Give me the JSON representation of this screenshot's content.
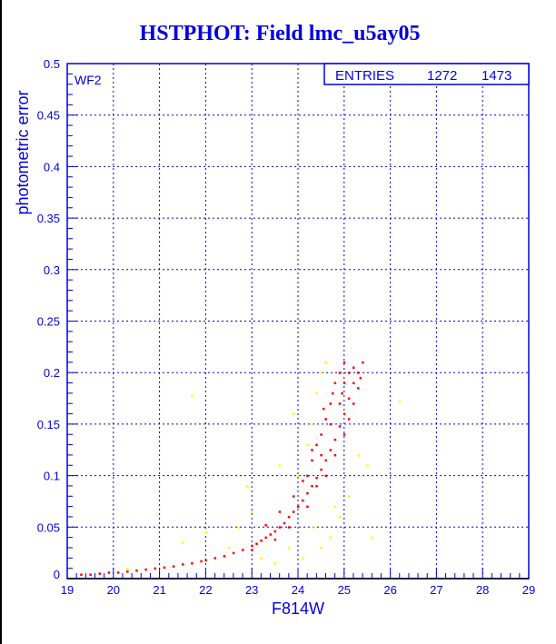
{
  "chart_data": {
    "type": "scatter",
    "title": "HSTPHOT: Field lmc_u5ay05",
    "xlabel": "F814W",
    "ylabel": "photometric error",
    "xlim": [
      19,
      29
    ],
    "ylim": [
      0,
      0.5
    ],
    "xticks": [
      "19",
      "20",
      "21",
      "22",
      "23",
      "24",
      "25",
      "26",
      "27",
      "28",
      "29"
    ],
    "yticks": [
      "0",
      "0.05",
      "0.1",
      "0.15",
      "0.2",
      "0.25",
      "0.3",
      "0.35",
      "0.4",
      "0.45",
      "0.5"
    ],
    "grid": true,
    "annotation": "WF2",
    "stats": {
      "label": "ENTRIES",
      "values": [
        "1272",
        "1473"
      ]
    },
    "colors": {
      "axis": "#0000e0",
      "series_red": "#ff0000",
      "series_yellow": "#ffff00"
    },
    "series": [
      {
        "color": "#ff0000",
        "points": [
          [
            19.3,
            0.004
          ],
          [
            19.5,
            0.004
          ],
          [
            19.7,
            0.005
          ],
          [
            19.9,
            0.006
          ],
          [
            20.1,
            0.006
          ],
          [
            20.3,
            0.007
          ],
          [
            20.5,
            0.008
          ],
          [
            20.7,
            0.009
          ],
          [
            20.9,
            0.01
          ],
          [
            21.1,
            0.011
          ],
          [
            21.3,
            0.012
          ],
          [
            21.5,
            0.014
          ],
          [
            21.7,
            0.015
          ],
          [
            21.9,
            0.017
          ],
          [
            22.0,
            0.018
          ],
          [
            22.2,
            0.02
          ],
          [
            22.4,
            0.022
          ],
          [
            22.6,
            0.025
          ],
          [
            22.8,
            0.028
          ],
          [
            23.0,
            0.032
          ],
          [
            23.1,
            0.034
          ],
          [
            23.2,
            0.037
          ],
          [
            23.3,
            0.04
          ],
          [
            23.4,
            0.043
          ],
          [
            23.5,
            0.046
          ],
          [
            23.6,
            0.05
          ],
          [
            23.7,
            0.054
          ],
          [
            23.8,
            0.06
          ],
          [
            23.9,
            0.065
          ],
          [
            24.0,
            0.07
          ],
          [
            24.1,
            0.076
          ],
          [
            24.2,
            0.083
          ],
          [
            24.3,
            0.09
          ],
          [
            24.4,
            0.098
          ],
          [
            24.5,
            0.106
          ],
          [
            24.6,
            0.115
          ],
          [
            24.7,
            0.125
          ],
          [
            24.8,
            0.135
          ],
          [
            24.9,
            0.148
          ],
          [
            25.0,
            0.16
          ],
          [
            25.1,
            0.175
          ],
          [
            25.2,
            0.19
          ],
          [
            25.3,
            0.2
          ],
          [
            25.4,
            0.21
          ],
          [
            23.3,
            0.052
          ],
          [
            23.6,
            0.065
          ],
          [
            23.9,
            0.08
          ],
          [
            24.1,
            0.095
          ],
          [
            24.2,
            0.1
          ],
          [
            24.3,
            0.115
          ],
          [
            24.4,
            0.13
          ],
          [
            24.5,
            0.14
          ],
          [
            24.6,
            0.155
          ],
          [
            24.7,
            0.17
          ],
          [
            24.75,
            0.18
          ],
          [
            24.8,
            0.19
          ],
          [
            24.9,
            0.2
          ],
          [
            25.0,
            0.21
          ],
          [
            24.6,
            0.1
          ],
          [
            24.8,
            0.12
          ],
          [
            25.0,
            0.14
          ],
          [
            25.1,
            0.155
          ],
          [
            25.2,
            0.17
          ],
          [
            25.3,
            0.185
          ],
          [
            25.35,
            0.195
          ],
          [
            25.0,
            0.19
          ],
          [
            24.9,
            0.17
          ],
          [
            24.4,
            0.09
          ],
          [
            24.2,
            0.07
          ],
          [
            23.8,
            0.05
          ],
          [
            23.5,
            0.038
          ],
          [
            23.0,
            0.028
          ],
          [
            24.5,
            0.12
          ],
          [
            24.7,
            0.15
          ],
          [
            25.1,
            0.2
          ],
          [
            24.95,
            0.18
          ],
          [
            25.2,
            0.205
          ],
          [
            24.3,
            0.125
          ],
          [
            24.55,
            0.165
          ]
        ]
      },
      {
        "color": "#ffff00",
        "points": [
          [
            21.7,
            0.178
          ],
          [
            22.5,
            0.03
          ],
          [
            22.7,
            0.05
          ],
          [
            23.0,
            0.065
          ],
          [
            23.2,
            0.02
          ],
          [
            23.5,
            0.015
          ],
          [
            23.8,
            0.03
          ],
          [
            24.0,
            0.1
          ],
          [
            24.2,
            0.13
          ],
          [
            24.3,
            0.15
          ],
          [
            24.4,
            0.18
          ],
          [
            24.5,
            0.2
          ],
          [
            24.6,
            0.21
          ],
          [
            24.7,
            0.04
          ],
          [
            24.5,
            0.03
          ],
          [
            24.8,
            0.07
          ],
          [
            25.1,
            0.08
          ],
          [
            25.3,
            0.12
          ],
          [
            25.5,
            0.11
          ],
          [
            26.2,
            0.172
          ],
          [
            25.6,
            0.04
          ],
          [
            24.9,
            0.06
          ],
          [
            23.9,
            0.16
          ],
          [
            24.1,
            0.02
          ],
          [
            22.9,
            0.09
          ],
          [
            21.5,
            0.035
          ],
          [
            20.3,
            0.01
          ],
          [
            22.0,
            0.045
          ],
          [
            23.6,
            0.11
          ],
          [
            24.35,
            0.05
          ]
        ]
      }
    ]
  }
}
